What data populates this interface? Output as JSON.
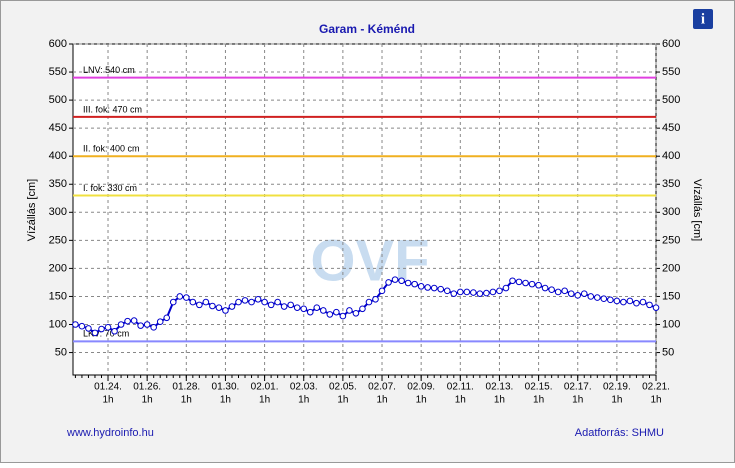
{
  "chart_data": {
    "type": "line",
    "title": "Garam - Kéménd",
    "y_label": "Vízállás [cm]",
    "footer_left": "www.hydroinfo.hu",
    "footer_right": "Adatforrás: SHMU",
    "watermark": "OVF",
    "info_icon": "i",
    "grid": true,
    "ylim": [
      10,
      600
    ],
    "yticks": [
      50,
      100,
      150,
      200,
      250,
      300,
      350,
      400,
      450,
      500,
      550,
      600
    ],
    "categories": [
      null,
      null,
      null,
      null,
      null,
      "01.24.",
      null,
      null,
      null,
      null,
      null,
      "01.26.",
      null,
      null,
      null,
      null,
      null,
      "01.28.",
      null,
      null,
      null,
      null,
      null,
      "01.30.",
      null,
      null,
      null,
      null,
      null,
      "02.01.",
      null,
      null,
      null,
      null,
      null,
      "02.03.",
      null,
      null,
      null,
      null,
      null,
      "02.05.",
      null,
      null,
      null,
      null,
      null,
      "02.07.",
      null,
      null,
      null,
      null,
      null,
      "02.09.",
      null,
      null,
      null,
      null,
      null,
      "02.11.",
      null,
      null,
      null,
      null,
      null,
      "02.13.",
      null,
      null,
      null,
      null,
      null,
      "02.15.",
      null,
      null,
      null,
      null,
      null,
      "02.17.",
      null,
      null,
      null,
      null,
      null,
      "02.19.",
      null,
      null,
      null,
      null,
      null,
      "02.21."
    ],
    "category_hours": [
      null,
      null,
      null,
      null,
      null,
      "1h",
      null,
      null,
      null,
      null,
      null,
      "1h",
      null,
      null,
      null,
      null,
      null,
      "1h",
      null,
      null,
      null,
      null,
      null,
      "1h",
      null,
      null,
      null,
      null,
      null,
      "1h",
      null,
      null,
      null,
      null,
      null,
      "1h",
      null,
      null,
      null,
      null,
      null,
      "1h",
      null,
      null,
      null,
      null,
      null,
      "1h",
      null,
      null,
      null,
      null,
      null,
      "1h",
      null,
      null,
      null,
      null,
      null,
      "1h",
      null,
      null,
      null,
      null,
      null,
      "1h",
      null,
      null,
      null,
      null,
      null,
      "1h",
      null,
      null,
      null,
      null,
      null,
      "1h",
      null,
      null,
      null,
      null,
      null,
      "1h",
      null,
      null,
      null,
      null,
      null,
      "1h"
    ],
    "series": [
      {
        "color": "#0000cc",
        "values": [
          100,
          97,
          93,
          85,
          92,
          95,
          88,
          100,
          106,
          107,
          98,
          100,
          95,
          105,
          112,
          140,
          150,
          148,
          140,
          135,
          140,
          133,
          130,
          125,
          132,
          140,
          143,
          140,
          145,
          140,
          135,
          140,
          132,
          135,
          130,
          128,
          122,
          130,
          125,
          118,
          122,
          115,
          125,
          120,
          128,
          140,
          145,
          160,
          175,
          180,
          178,
          174,
          172,
          168,
          166,
          165,
          163,
          160,
          155,
          158,
          158,
          157,
          155,
          156,
          158,
          160,
          165,
          178,
          176,
          174,
          172,
          170,
          165,
          162,
          158,
          160,
          155,
          152,
          155,
          150,
          148,
          146,
          144,
          142,
          140,
          142,
          138,
          140,
          135,
          130
        ]
      }
    ],
    "reference_lines": [
      {
        "label": "LNV: 540 cm",
        "value": 540,
        "color": "#e040e0"
      },
      {
        "label": "III. fok: 470 cm",
        "value": 470,
        "color": "#d02020"
      },
      {
        "label": "II. fok: 400 cm",
        "value": 400,
        "color": "#f0b020"
      },
      {
        "label": "I. fok: 330 cm",
        "value": 330,
        "color": "#f0e040"
      },
      {
        "label": "LKV: 70 cm",
        "value": 70,
        "color": "#8888ff"
      }
    ]
  }
}
